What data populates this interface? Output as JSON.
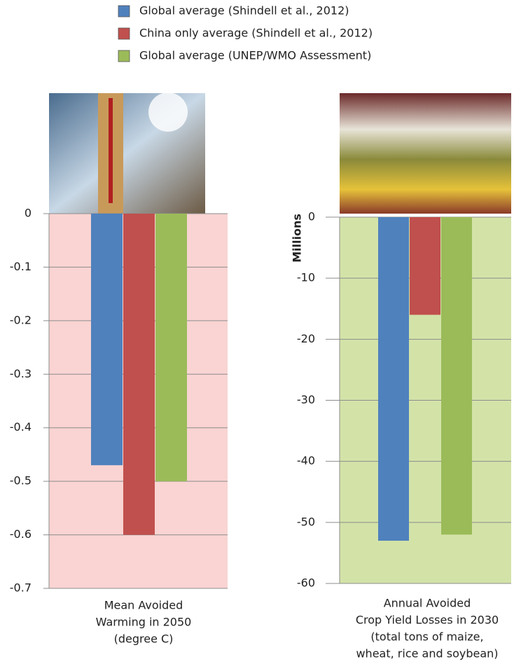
{
  "chart_data": [
    {
      "type": "bar",
      "series": [
        {
          "name": "Global average (Shindell et al., 2012)",
          "color": "#4f81bd",
          "values": [
            -0.47
          ]
        },
        {
          "name": "China only average (Shindell et al., 2012)",
          "color": "#c0504d",
          "values": [
            -0.6
          ]
        },
        {
          "name": "Global average (UNEP/WMO Assessment)",
          "color": "#9bbb59",
          "values": [
            -0.5
          ]
        }
      ],
      "xlabel": [
        "Mean Avoided",
        "Warming in 2050",
        "(degree C)"
      ],
      "ylim": [
        -0.7,
        0
      ],
      "yticks": [
        0,
        -0.1,
        -0.2,
        -0.3,
        -0.4,
        -0.5,
        -0.6,
        -0.7
      ],
      "background": "#f9d4d2",
      "grid": true
    },
    {
      "type": "bar",
      "series": [
        {
          "color": "#4f81bd",
          "values": [
            -53
          ]
        },
        {
          "color": "#c0504d",
          "values": [
            -16
          ]
        },
        {
          "color": "#9bbb59",
          "values": [
            -52
          ]
        }
      ],
      "ylabel": "Millions",
      "xlabel": [
        "Annual Avoided",
        "Crop Yield Losses in 2030",
        "(total tons of maize,",
        "wheat, rice and soybean)"
      ],
      "ylim": [
        -60,
        0
      ],
      "yticks": [
        0,
        -10,
        -20,
        -30,
        -40,
        -50,
        -60
      ],
      "background": "#d3e3a8",
      "grid": true
    }
  ]
}
